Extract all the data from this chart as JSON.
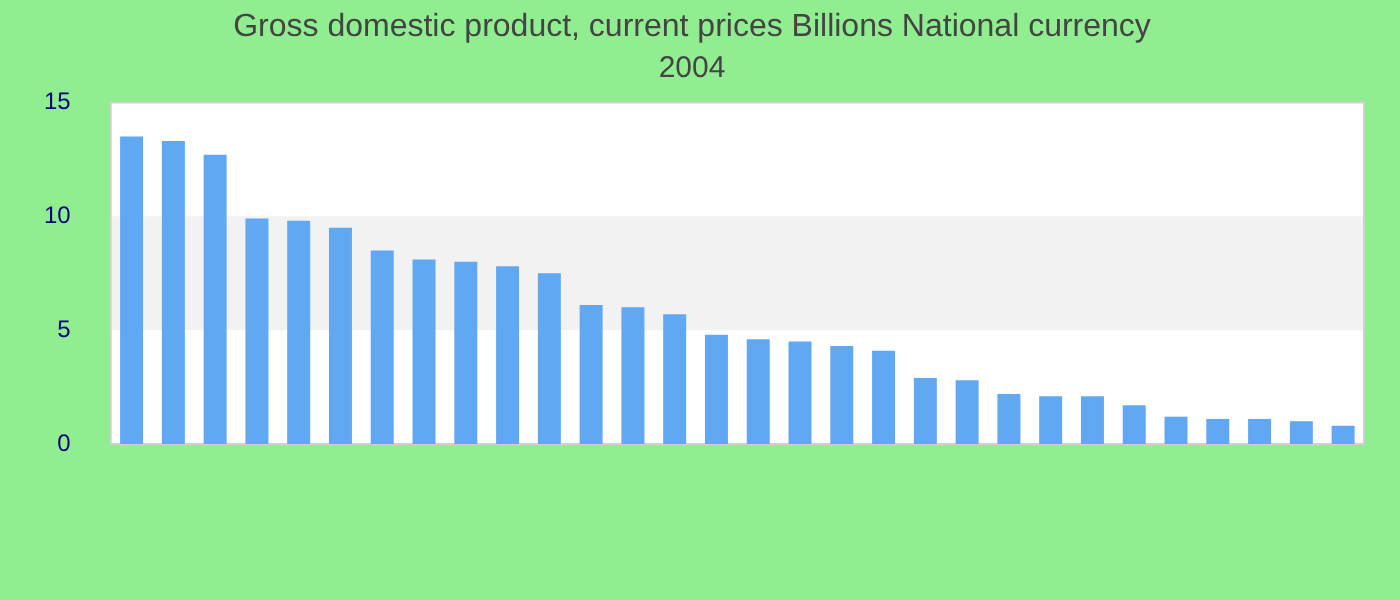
{
  "chart_data": {
    "type": "bar",
    "title": "Gross domestic product, current prices Billions National currency",
    "subtitle": "2004",
    "categories": [
      null,
      null,
      null,
      null,
      null,
      null,
      null,
      null,
      null,
      null,
      null,
      null,
      null,
      null,
      null,
      null,
      null,
      null,
      null,
      null,
      null,
      null,
      null,
      null,
      null,
      null,
      null,
      null,
      null,
      null
    ],
    "values": [
      13.5,
      13.3,
      12.7,
      9.9,
      9.8,
      9.5,
      8.5,
      8.1,
      8.0,
      7.8,
      7.5,
      6.1,
      6.0,
      5.7,
      4.8,
      4.6,
      4.5,
      4.3,
      4.1,
      2.9,
      2.8,
      2.2,
      2.1,
      2.1,
      1.7,
      1.2,
      1.1,
      1.1,
      1.0,
      0.8
    ],
    "color": "#60a8f2",
    "ylim": [
      0,
      15
    ],
    "yticks": [
      0,
      5,
      10,
      15
    ],
    "bands": [
      {
        "axis": "y",
        "from": 5,
        "to": 10,
        "color": "#f2f2f2"
      }
    ]
  }
}
